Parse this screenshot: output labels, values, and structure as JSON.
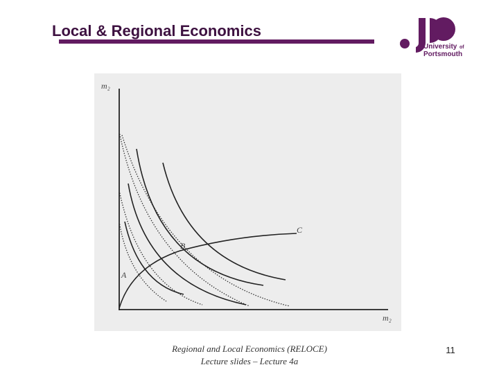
{
  "header": {
    "title": "Local & Regional Economics",
    "logo": {
      "line1": "University",
      "line1_small": "of",
      "line2": "Portsmouth"
    }
  },
  "diagram": {
    "y_axis_label": "m₂",
    "x_axis_label": "m₂",
    "points": {
      "a": "A",
      "b": "B",
      "c": "C"
    }
  },
  "footer": {
    "line1": "Regional and Local Economics (RELOCE)",
    "line2": "Lecture slides – Lecture 4a",
    "page_number": 11
  }
}
